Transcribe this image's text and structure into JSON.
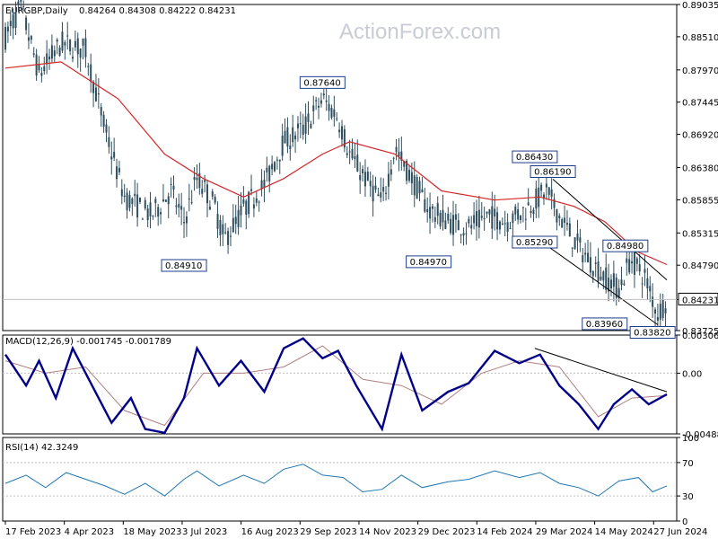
{
  "chart_data": [
    {
      "type": "candlestick",
      "header": {
        "symbol": "EURGBP,Daily",
        "ohlc": "0.84264 0.84308 0.84222 0.84231"
      },
      "watermark": "ActionForex.com",
      "ylim": [
        0.83725,
        0.89035
      ],
      "y_ticks": [
        "0.89035",
        "0.88510",
        "0.87970",
        "0.87445",
        "0.86920",
        "0.86380",
        "0.85855",
        "0.85315",
        "0.84790",
        "0.84231",
        "0.83725"
      ],
      "current_price": "0.84231",
      "x_ticks": [
        "17 Feb 2023",
        "4 Apr 2023",
        "18 May 2023",
        "3 Jul 2023",
        "16 Aug 2023",
        "29 Sep 2023",
        "14 Nov 2023",
        "29 Dec 2023",
        "14 Feb 2024",
        "29 Mar 2024",
        "14 May 2024",
        "27 Jun 2024"
      ],
      "price_path": [
        [
          "2023-02-17",
          0.885
        ],
        [
          "2023-03-01",
          0.89
        ],
        [
          "2023-03-15",
          0.879
        ],
        [
          "2023-04-01",
          0.884
        ],
        [
          "2023-04-20",
          0.883
        ],
        [
          "2023-05-05",
          0.87
        ],
        [
          "2023-05-20",
          0.859
        ],
        [
          "2023-06-10",
          0.856
        ],
        [
          "2023-06-25",
          0.86
        ],
        [
          "2023-07-05",
          0.855
        ],
        [
          "2023-07-15",
          0.862
        ],
        [
          "2023-07-28",
          0.858
        ],
        [
          "2023-08-05",
          0.852
        ],
        [
          "2023-08-20",
          0.857
        ],
        [
          "2023-09-05",
          0.861
        ],
        [
          "2023-09-20",
          0.868
        ],
        [
          "2023-10-05",
          0.87
        ],
        [
          "2023-10-20",
          0.875
        ],
        [
          "2023-11-01",
          0.872
        ],
        [
          "2023-11-10",
          0.866
        ],
        [
          "2023-11-25",
          0.861
        ],
        [
          "2023-12-05",
          0.858
        ],
        [
          "2023-12-15",
          0.867
        ],
        [
          "2023-12-28",
          0.862
        ],
        [
          "2024-01-10",
          0.857
        ],
        [
          "2024-01-25",
          0.855
        ],
        [
          "2024-02-10",
          0.854
        ],
        [
          "2024-02-25",
          0.856
        ],
        [
          "2024-03-10",
          0.855
        ],
        [
          "2024-03-25",
          0.857
        ],
        [
          "2024-04-10",
          0.86
        ],
        [
          "2024-04-20",
          0.856
        ],
        [
          "2024-05-01",
          0.852
        ],
        [
          "2024-05-12",
          0.849
        ],
        [
          "2024-05-25",
          0.846
        ],
        [
          "2024-06-05",
          0.844
        ],
        [
          "2024-06-14",
          0.849
        ],
        [
          "2024-06-25",
          0.846
        ],
        [
          "2024-07-05",
          0.84
        ],
        [
          "2024-07-12",
          0.8423
        ]
      ],
      "moving_average": [
        [
          "2023-02-17",
          0.88
        ],
        [
          "2023-04-01",
          0.881
        ],
        [
          "2023-05-15",
          0.875
        ],
        [
          "2023-06-20",
          0.866
        ],
        [
          "2023-07-20",
          0.862
        ],
        [
          "2023-08-20",
          0.859
        ],
        [
          "2023-09-20",
          0.862
        ],
        [
          "2023-10-20",
          0.866
        ],
        [
          "2023-11-10",
          0.868
        ],
        [
          "2023-12-15",
          0.866
        ],
        [
          "2024-01-20",
          0.86
        ],
        [
          "2024-03-01",
          0.8585
        ],
        [
          "2024-04-05",
          0.859
        ],
        [
          "2024-05-01",
          0.8575
        ],
        [
          "2024-05-25",
          0.855
        ],
        [
          "2024-06-20",
          0.85
        ],
        [
          "2024-07-12",
          0.848
        ]
      ],
      "channel_lines": [
        [
          [
            "2024-04-15",
            0.8619
          ],
          [
            "2024-07-12",
            0.8455
          ]
        ],
        [
          [
            "2024-04-01",
            0.8525
          ],
          [
            "2024-07-05",
            0.8382
          ]
        ]
      ],
      "annotations": [
        {
          "label": "0.84910",
          "date": "2023-07-05",
          "price": 0.8491,
          "anchor": "below"
        },
        {
          "label": "0.87640",
          "date": "2023-10-20",
          "price": 0.8764,
          "anchor": "above"
        },
        {
          "label": "0.84970",
          "date": "2024-01-10",
          "price": 0.8497,
          "anchor": "below"
        },
        {
          "label": "0.86430",
          "date": "2024-04-01",
          "price": 0.8643,
          "anchor": "above"
        },
        {
          "label": "0.86190",
          "date": "2024-04-15",
          "price": 0.8619,
          "anchor": "above"
        },
        {
          "label": "0.85290",
          "date": "2024-04-01",
          "price": 0.8529,
          "anchor": "below"
        },
        {
          "label": "0.84980",
          "date": "2024-06-10",
          "price": 0.8498,
          "anchor": "above"
        },
        {
          "label": "0.83960",
          "date": "2024-05-25",
          "price": 0.8396,
          "anchor": "below"
        },
        {
          "label": "0.83820",
          "date": "2024-07-01",
          "price": 0.8382,
          "anchor": "below"
        }
      ]
    },
    {
      "type": "line",
      "title": "MACD(12,26,9) -0.001745 -0.001789",
      "ylim": [
        -0.004888,
        0.003066
      ],
      "y_ticks": [
        "0.003066",
        "0.00",
        "-0.004888"
      ],
      "macd": [
        [
          "2023-02-17",
          0.0015
        ],
        [
          "2023-03-05",
          -0.001
        ],
        [
          "2023-03-15",
          0.001
        ],
        [
          "2023-03-28",
          -0.002
        ],
        [
          "2023-04-10",
          0.002
        ],
        [
          "2023-04-25",
          -0.001
        ],
        [
          "2023-05-10",
          -0.004
        ],
        [
          "2023-05-25",
          -0.002
        ],
        [
          "2023-06-05",
          -0.0045
        ],
        [
          "2023-06-20",
          -0.0048
        ],
        [
          "2023-07-05",
          -0.002
        ],
        [
          "2023-07-15",
          0.002
        ],
        [
          "2023-08-01",
          -0.001
        ],
        [
          "2023-08-18",
          0.001
        ],
        [
          "2023-09-05",
          -0.0015
        ],
        [
          "2023-09-20",
          0.002
        ],
        [
          "2023-10-05",
          0.0028
        ],
        [
          "2023-10-20",
          0.0012
        ],
        [
          "2023-11-01",
          0.0018
        ],
        [
          "2023-11-15",
          -0.001
        ],
        [
          "2023-12-05",
          -0.0045
        ],
        [
          "2023-12-20",
          0.0015
        ],
        [
          "2024-01-05",
          -0.003
        ],
        [
          "2024-01-25",
          -0.0015
        ],
        [
          "2024-02-10",
          -0.0008
        ],
        [
          "2024-03-01",
          0.0018
        ],
        [
          "2024-03-20",
          0.0008
        ],
        [
          "2024-04-05",
          0.0015
        ],
        [
          "2024-04-20",
          -0.001
        ],
        [
          "2024-05-05",
          -0.0025
        ],
        [
          "2024-05-20",
          -0.0045
        ],
        [
          "2024-06-01",
          -0.0025
        ],
        [
          "2024-06-15",
          -0.0013
        ],
        [
          "2024-06-28",
          -0.0025
        ],
        [
          "2024-07-12",
          -0.0017
        ]
      ],
      "signal": [
        [
          "2023-02-17",
          0.001
        ],
        [
          "2023-03-20",
          0.0
        ],
        [
          "2023-04-20",
          0.0005
        ],
        [
          "2023-05-20",
          -0.003
        ],
        [
          "2023-06-20",
          -0.0042
        ],
        [
          "2023-07-20",
          0.0
        ],
        [
          "2023-08-20",
          0.0
        ],
        [
          "2023-09-20",
          0.0005
        ],
        [
          "2023-10-20",
          0.0022
        ],
        [
          "2023-11-20",
          -0.0005
        ],
        [
          "2023-12-20",
          -0.001
        ],
        [
          "2024-01-20",
          -0.0025
        ],
        [
          "2024-02-20",
          0.0
        ],
        [
          "2024-03-20",
          0.001
        ],
        [
          "2024-04-20",
          0.0005
        ],
        [
          "2024-05-20",
          -0.0035
        ],
        [
          "2024-06-15",
          -0.002
        ],
        [
          "2024-07-12",
          -0.0018
        ]
      ],
      "trendline": [
        [
          "2024-04-01",
          0.002
        ],
        [
          "2024-07-12",
          -0.0015
        ]
      ]
    },
    {
      "type": "line",
      "title": "RSI(14) 42.3249",
      "ylim": [
        0,
        100
      ],
      "y_ticks": [
        "100",
        "70",
        "30",
        "0"
      ],
      "rsi": [
        [
          "2023-02-17",
          45
        ],
        [
          "2023-03-05",
          55
        ],
        [
          "2023-03-20",
          40
        ],
        [
          "2023-04-05",
          58
        ],
        [
          "2023-04-20",
          50
        ],
        [
          "2023-05-05",
          42
        ],
        [
          "2023-05-20",
          32
        ],
        [
          "2023-06-05",
          45
        ],
        [
          "2023-06-20",
          30
        ],
        [
          "2023-07-05",
          50
        ],
        [
          "2023-07-15",
          60
        ],
        [
          "2023-08-01",
          42
        ],
        [
          "2023-08-20",
          55
        ],
        [
          "2023-09-05",
          45
        ],
        [
          "2023-09-20",
          62
        ],
        [
          "2023-10-05",
          68
        ],
        [
          "2023-10-20",
          55
        ],
        [
          "2023-11-05",
          52
        ],
        [
          "2023-11-20",
          35
        ],
        [
          "2023-12-05",
          38
        ],
        [
          "2023-12-20",
          55
        ],
        [
          "2024-01-05",
          40
        ],
        [
          "2024-01-25",
          47
        ],
        [
          "2024-02-10",
          50
        ],
        [
          "2024-03-01",
          60
        ],
        [
          "2024-03-20",
          52
        ],
        [
          "2024-04-05",
          58
        ],
        [
          "2024-04-20",
          45
        ],
        [
          "2024-05-05",
          40
        ],
        [
          "2024-05-20",
          30
        ],
        [
          "2024-06-05",
          48
        ],
        [
          "2024-06-20",
          52
        ],
        [
          "2024-07-01",
          35
        ],
        [
          "2024-07-12",
          42
        ]
      ]
    }
  ]
}
